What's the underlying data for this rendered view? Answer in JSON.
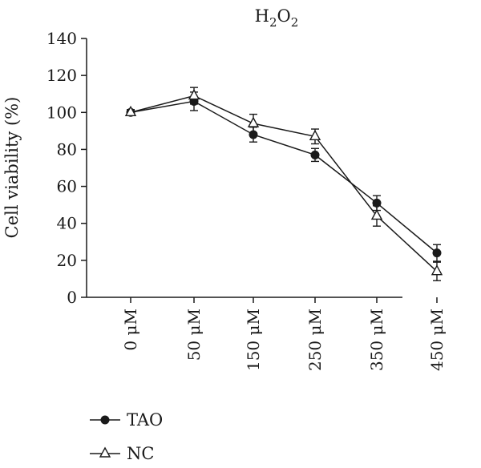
{
  "chart_data": {
    "type": "line",
    "title_main": "H",
    "title_sub1": "2",
    "title_mid": "O",
    "title_sub2": "2",
    "ylabel": "Cell viability (%)",
    "xlabel": "",
    "ylim": [
      0,
      140
    ],
    "yticks": [
      0,
      20,
      40,
      60,
      80,
      100,
      120,
      140
    ],
    "categories": [
      "0 μM",
      "50 μM",
      "150 μM",
      "250 μM",
      "350 μM",
      "450 μM"
    ],
    "legend_position": "bottom-left",
    "grid": false,
    "series": [
      {
        "name": "TAO",
        "marker": "filled-circle",
        "color": "#1a1a1a",
        "values": [
          100,
          106,
          88,
          77,
          51,
          24
        ],
        "errors": [
          1.5,
          5,
          4,
          3.5,
          4,
          4.5
        ]
      },
      {
        "name": "NC",
        "marker": "open-triangle",
        "color": "#1a1a1a",
        "values": [
          100,
          109,
          94,
          87,
          44,
          14
        ],
        "errors": [
          1.5,
          4.5,
          5,
          4,
          5.5,
          5
        ]
      }
    ]
  }
}
